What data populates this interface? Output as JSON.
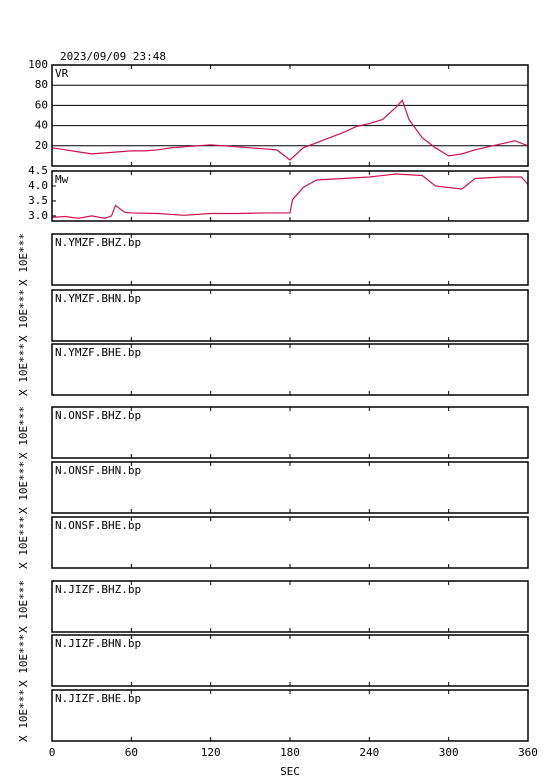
{
  "chart_data": {
    "type": "line",
    "title": "2023/09/09 23:48",
    "xlabel": "SEC",
    "xlim": [
      0,
      360
    ],
    "xticks": [
      0,
      60,
      120,
      180,
      240,
      300,
      360
    ],
    "panels": [
      {
        "label": "VR",
        "ylim": [
          0,
          100
        ],
        "yticks": [
          20,
          40,
          60,
          80,
          100
        ],
        "grid": true,
        "series": [
          {
            "color": "#d0104a",
            "x": [
              0,
              10,
              20,
              30,
              40,
              50,
              60,
              70,
              80,
              90,
              100,
              110,
              120,
              130,
              140,
              150,
              160,
              170,
              180,
              190,
              200,
              210,
              220,
              230,
              240,
              250,
              260,
              265,
              270,
              280,
              290,
              300,
              310,
              320,
              330,
              340,
              350,
              360
            ],
            "values": [
              18,
              16,
              14,
              12,
              13,
              14,
              15,
              15,
              16,
              18,
              19,
              20,
              21,
              20,
              19,
              18,
              17,
              16,
              6,
              18,
              23,
              28,
              33,
              39,
              42,
              46,
              58,
              65,
              46,
              28,
              18,
              10,
              12,
              16,
              19,
              22,
              25,
              20
            ]
          }
        ]
      },
      {
        "label": "Mw",
        "ylim": [
          2.83,
          4.5
        ],
        "yticks": [
          {
            "value": 3,
            "label": "3.0"
          },
          3.5,
          {
            "value": 4,
            "label": "4.0"
          },
          4.5
        ],
        "grid": false,
        "series": [
          {
            "color": "#d0104a",
            "x": [
              0,
              10,
              20,
              30,
              40,
              45,
              48,
              55,
              60,
              80,
              100,
              120,
              140,
              160,
              180,
              182,
              190,
              200,
              220,
              240,
              260,
              280,
              290,
              300,
              310,
              320,
              340,
              355,
              360
            ],
            "values": [
              2.95,
              2.98,
              2.92,
              3.0,
              2.92,
              3.0,
              3.35,
              3.12,
              3.1,
              3.08,
              3.02,
              3.08,
              3.08,
              3.1,
              3.1,
              3.55,
              3.95,
              4.2,
              4.25,
              4.3,
              4.4,
              4.35,
              4.0,
              3.95,
              3.9,
              4.25,
              4.3,
              4.3,
              4.05
            ]
          }
        ]
      }
    ],
    "traces": [
      {
        "label": "N.YMZF.BHZ.bp",
        "ylabel": "X 10E***"
      },
      {
        "label": "N.YMZF.BHN.bp",
        "ylabel": "X 10E***"
      },
      {
        "label": "N.YMZF.BHE.bp",
        "ylabel": "X 10E***"
      },
      {
        "label": "N.ONSF.BHZ.bp",
        "ylabel": "X 10E***"
      },
      {
        "label": "N.ONSF.BHN.bp",
        "ylabel": "X 10E***"
      },
      {
        "label": "N.ONSF.BHE.bp",
        "ylabel": "X 10E***"
      },
      {
        "label": "N.JIZF.BHZ.bp",
        "ylabel": "X 10E***"
      },
      {
        "label": "N.JIZF.BHN.bp",
        "ylabel": "X 10E***"
      },
      {
        "label": "N.JIZF.BHE.bp",
        "ylabel": "X 10E***"
      }
    ]
  }
}
